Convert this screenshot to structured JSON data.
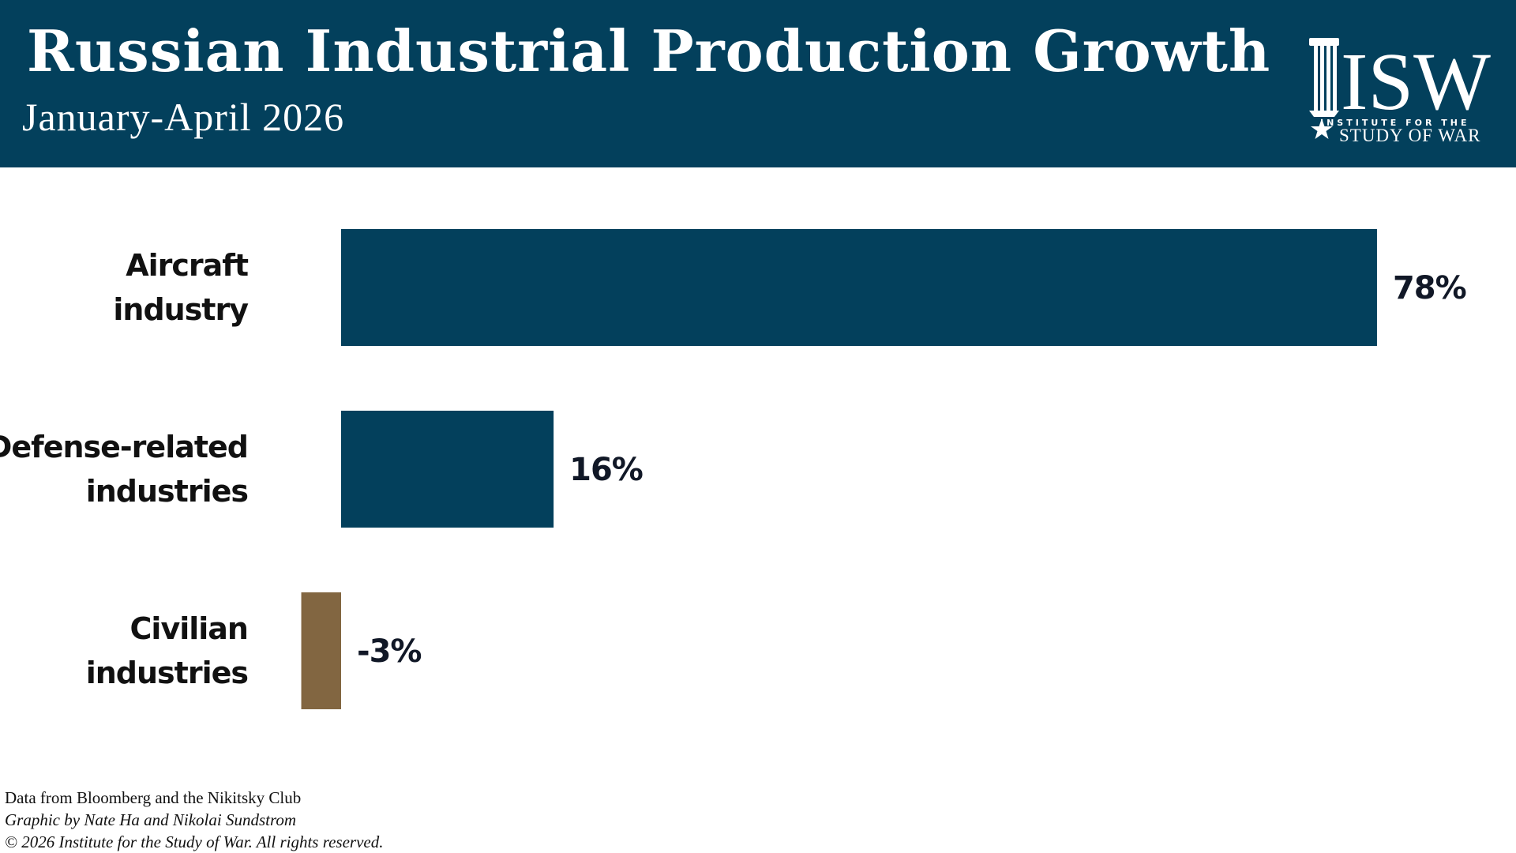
{
  "header": {
    "title": "Russian Industrial Production Growth",
    "subtitle": "January-April 2026",
    "logo": {
      "mark": "ISW",
      "line1": "INSTITUTE FOR THE",
      "line2": "STUDY OF WAR",
      "icon": "star-icon"
    }
  },
  "colors": {
    "header_bg": "#03405c",
    "positive_bar": "#03405c",
    "negative_bar": "#826641"
  },
  "chart_data": {
    "type": "bar",
    "orientation": "horizontal",
    "title": "Russian Industrial Production Growth",
    "subtitle": "January-April 2026",
    "categories": [
      [
        "Aircraft",
        "industry"
      ],
      [
        "Defense-related",
        "industries"
      ],
      [
        "Civilian",
        "industries"
      ]
    ],
    "values": [
      78,
      16,
      -3
    ],
    "value_labels": [
      "78%",
      "16%",
      "-3%"
    ],
    "unit": "%",
    "xlim": [
      -3,
      78
    ],
    "grid": false,
    "legend": "none"
  },
  "footer": {
    "source": "Data from Bloomberg and the Nikitsky Club",
    "credit": "Graphic by Nate Ha and Nikolai Sundstrom",
    "copyright": "© 2026 Institute for the Study of War. All rights reserved."
  }
}
